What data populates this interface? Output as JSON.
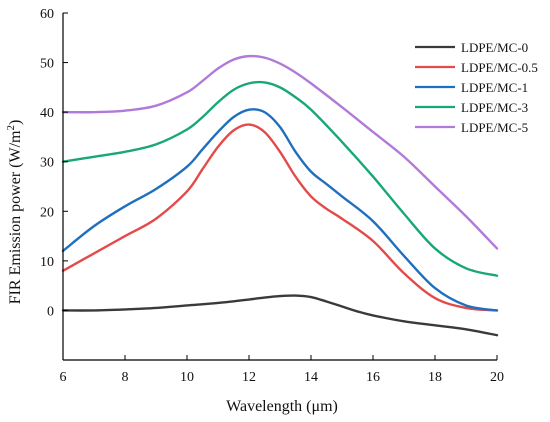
{
  "chart_data": {
    "type": "line",
    "title": "",
    "xlabel": "Wavelength (μm)",
    "ylabel": "FIR Emission power (W/m²)",
    "ylabel_main": "FIR Emission power (W/m",
    "ylabel_sup": "2",
    "ylabel_end": ")",
    "xlim": [
      6,
      20
    ],
    "ylim": [
      -10,
      60
    ],
    "xticks": [
      6,
      8,
      10,
      12,
      14,
      16,
      18,
      20
    ],
    "yticks": [
      0,
      10,
      20,
      30,
      40,
      50,
      60
    ],
    "grid": false,
    "legend_position": "top-right",
    "series": [
      {
        "name": "LDPE/MC-0",
        "color": "#3a3a3a",
        "x": [
          6,
          7,
          8,
          9,
          10,
          11,
          12,
          12.5,
          13,
          13.5,
          14,
          14.5,
          15,
          15.5,
          16,
          17,
          18,
          19,
          20
        ],
        "y": [
          0,
          0,
          0.2,
          0.5,
          1,
          1.5,
          2.2,
          2.6,
          2.9,
          3.0,
          2.7,
          1.8,
          0.8,
          -0.2,
          -1,
          -2.2,
          -3,
          -3.8,
          -5
        ]
      },
      {
        "name": "LDPE/MC-0.5",
        "color": "#e34a4a",
        "x": [
          6,
          7,
          8,
          9,
          10,
          10.5,
          11,
          11.5,
          12,
          12.5,
          13,
          13.5,
          14,
          14.5,
          15,
          16,
          17,
          18,
          19,
          20
        ],
        "y": [
          8,
          11.5,
          15,
          18.5,
          24,
          28.5,
          33,
          36.3,
          37.5,
          36,
          32,
          27,
          23,
          20.5,
          18.5,
          14,
          7.5,
          2.5,
          0.5,
          0
        ]
      },
      {
        "name": "LDPE/MC-1",
        "color": "#1f6fbf",
        "x": [
          6,
          7,
          8,
          9,
          10,
          10.5,
          11,
          11.5,
          12,
          12.5,
          13,
          13.5,
          14,
          14.5,
          15,
          16,
          17,
          18,
          19,
          20
        ],
        "y": [
          12,
          17,
          21,
          24.5,
          29,
          32.5,
          36,
          39,
          40.5,
          40,
          37,
          32,
          28,
          25.5,
          23,
          18,
          11,
          4.5,
          1,
          0
        ]
      },
      {
        "name": "LDPE/MC-3",
        "color": "#19a77a",
        "x": [
          6,
          7,
          8,
          9,
          10,
          10.5,
          11,
          11.5,
          12,
          12.5,
          13,
          13.5,
          14,
          15,
          16,
          17,
          18,
          19,
          20
        ],
        "y": [
          30,
          31,
          32,
          33.5,
          36.5,
          39,
          42,
          44.5,
          45.8,
          46,
          45,
          43,
          40.5,
          34,
          27,
          19.5,
          12.5,
          8.5,
          7
        ]
      },
      {
        "name": "LDPE/MC-5",
        "color": "#b27ad8",
        "x": [
          6,
          7,
          8,
          9,
          10,
          10.5,
          11,
          11.5,
          12,
          12.5,
          13,
          13.5,
          14,
          15,
          16,
          17,
          18,
          19,
          20
        ],
        "y": [
          40,
          40,
          40.3,
          41.3,
          44,
          46.3,
          48.8,
          50.6,
          51.3,
          51,
          49.8,
          48,
          45.8,
          41,
          36,
          31,
          25,
          19,
          12.5
        ]
      }
    ]
  }
}
